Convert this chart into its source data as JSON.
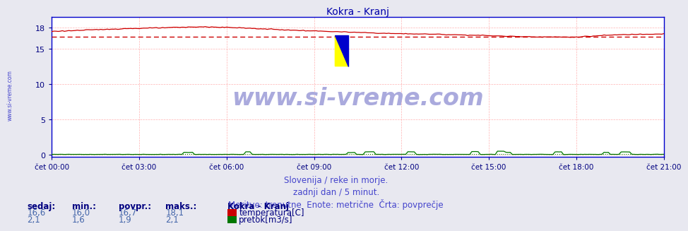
{
  "title": "Kokra - Kranj",
  "title_color": "#0000aa",
  "title_fontsize": 10,
  "bg_color": "#e8e8f0",
  "plot_bg_color": "#ffffff",
  "grid_color": "#ffaaaa",
  "avg_line_color_temp": "#cc0000",
  "avg_line_color_flow": "#009900",
  "xticklabels": [
    "čet 00:00",
    "čet 03:00",
    "čet 06:00",
    "čet 09:00",
    "čet 12:00",
    "čet 15:00",
    "čet 18:00",
    "čet 21:00"
  ],
  "xtick_color": "#000080",
  "ytick_color": "#000080",
  "ylim": [
    -0.3,
    19.5
  ],
  "xlim": [
    0,
    287
  ],
  "temp_color": "#cc0000",
  "flow_color": "#007700",
  "watermark_text": "www.si-vreme.com",
  "watermark_color": "#aaaadd",
  "watermark_fontsize": 24,
  "side_watermark_color": "#4444cc",
  "footer_line1": "Slovenija / reke in morje.",
  "footer_line2": "zadnji dan / 5 minut.",
  "footer_line3": "Meritve: trenutne  Enote: metrične  Črta: povprečje",
  "footer_color": "#4444cc",
  "footer_fontsize": 8.5,
  "legend_title": "Kokra - Kranj",
  "legend_color": "#000080",
  "legend_fontsize": 8.5,
  "table_headers": [
    "sedaj:",
    "min.:",
    "povpr.:",
    "maks.:"
  ],
  "table_temp": [
    "16,6",
    "16,0",
    "16,7",
    "18,1"
  ],
  "table_flow": [
    "2,1",
    "1,6",
    "1,9",
    "2,1"
  ],
  "table_color": "#000080",
  "table_data_color": "#4466aa",
  "temp_avg": 16.7,
  "flow_avg_display": 0.06,
  "num_points": 288,
  "spine_color": "#0000cc",
  "yticks": [
    0,
    5,
    10,
    15,
    18
  ]
}
